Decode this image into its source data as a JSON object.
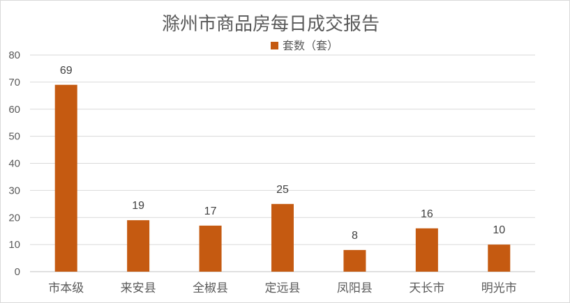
{
  "chart_data": {
    "type": "bar",
    "title": "滁州市商品房每日成交报告",
    "categories": [
      "市本级",
      "来安县",
      "全椒县",
      "定远县",
      "凤阳县",
      "天长市",
      "明光市"
    ],
    "series": [
      {
        "name": "套数（套）",
        "values": [
          69,
          19,
          17,
          25,
          8,
          16,
          10
        ]
      }
    ],
    "xlabel": "",
    "ylabel": "",
    "ylim": [
      0,
      80
    ],
    "yticks": [
      "0",
      "10",
      "20",
      "30",
      "40",
      "50",
      "60",
      "70",
      "80"
    ],
    "grid": true,
    "legend_position": "top-center",
    "data_labels": true,
    "bar_color": "#c55a11"
  }
}
